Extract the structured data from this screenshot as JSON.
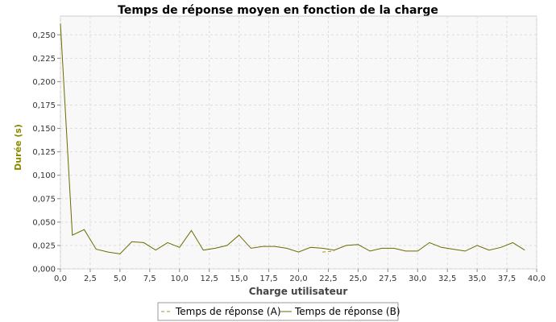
{
  "chart_data": {
    "type": "line",
    "title": "Temps de réponse moyen en fonction de la charge",
    "xlabel": "Charge utilisateur",
    "ylabel": "Durée (s)",
    "xlim": [
      0,
      40
    ],
    "ylim": [
      0,
      0.27
    ],
    "x_ticks": [
      "0,0",
      "2,5",
      "5,0",
      "7,5",
      "10,0",
      "12,5",
      "15,0",
      "17,5",
      "20,0",
      "22,5",
      "25,0",
      "27,5",
      "30,0",
      "32,5",
      "35,0",
      "37,5",
      "40,0"
    ],
    "y_ticks": [
      "0,000",
      "0,025",
      "0,050",
      "0,075",
      "0,100",
      "0,125",
      "0,150",
      "0,175",
      "0,200",
      "0,225",
      "0,250"
    ],
    "grid": true,
    "legend_position": "bottom",
    "series": [
      {
        "name": "Temps de réponse (A)",
        "color": "#9a9a30",
        "dashed": true,
        "x": [
          22,
          23
        ],
        "y": [
          0.018,
          0.019
        ]
      },
      {
        "name": "Temps de réponse (B)",
        "color": "#6b6b00",
        "dashed": false,
        "x": [
          0,
          1,
          2,
          3,
          4,
          5,
          6,
          7,
          8,
          9,
          10,
          11,
          12,
          13,
          14,
          15,
          16,
          17,
          18,
          19,
          20,
          21,
          22,
          23,
          24,
          25,
          26,
          27,
          28,
          29,
          30,
          31,
          32,
          33,
          34,
          35,
          36,
          37,
          38,
          39
        ],
        "y": [
          0.262,
          0.036,
          0.042,
          0.021,
          0.018,
          0.016,
          0.029,
          0.028,
          0.02,
          0.028,
          0.023,
          0.041,
          0.02,
          0.022,
          0.025,
          0.036,
          0.022,
          0.024,
          0.024,
          0.022,
          0.018,
          0.023,
          0.022,
          0.02,
          0.025,
          0.026,
          0.019,
          0.022,
          0.022,
          0.019,
          0.019,
          0.028,
          0.023,
          0.021,
          0.019,
          0.025,
          0.02,
          0.023,
          0.028,
          0.02
        ]
      }
    ]
  }
}
